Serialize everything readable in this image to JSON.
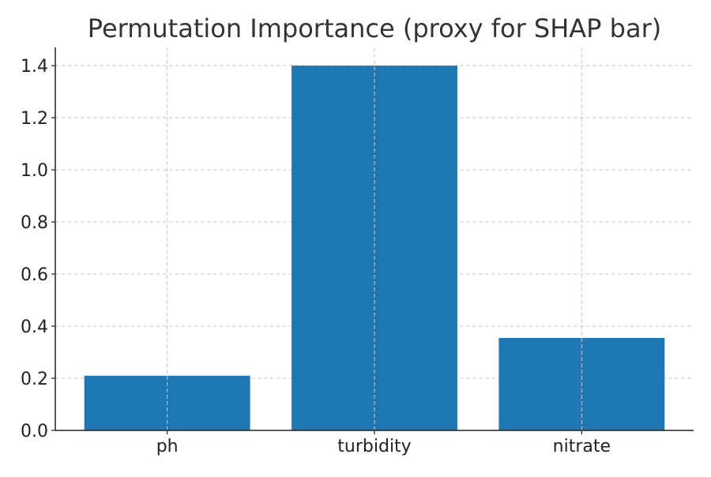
{
  "chart_data": {
    "type": "bar",
    "title": "Permutation Importance (proxy for SHAP bar)",
    "xlabel": "",
    "ylabel": "",
    "categories": [
      "ph",
      "turbidity",
      "nitrate"
    ],
    "values": [
      0.21,
      1.4,
      0.355
    ],
    "ylim": [
      0,
      1.47
    ],
    "yticks": [
      0.0,
      0.2,
      0.4,
      0.6,
      0.8,
      1.0,
      1.2,
      1.4
    ],
    "ytick_labels": [
      "0.0",
      "0.2",
      "0.4",
      "0.6",
      "0.8",
      "1.0",
      "1.2",
      "1.4"
    ],
    "grid": true,
    "bar_color": "#1f77b4",
    "legend": "none"
  }
}
